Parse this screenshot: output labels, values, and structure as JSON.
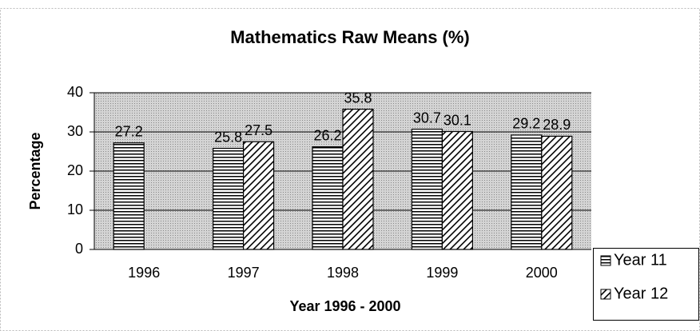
{
  "chart_data": {
    "type": "bar",
    "title": "Mathematics Raw Means (%)",
    "x_label": "Year 1996 - 2000",
    "y_label": "Percentage",
    "categories": [
      "1996",
      "1997",
      "1998",
      "1999",
      "2000"
    ],
    "series": [
      {
        "name": "Year 11",
        "color": "#000000",
        "values": [
          27.2,
          25.8,
          26.2,
          30.7,
          29.2
        ]
      },
      {
        "name": "Year 12",
        "color": "#000000",
        "values": [
          null,
          27.5,
          35.8,
          30.1,
          28.9
        ]
      }
    ],
    "ylim": [
      0,
      40
    ],
    "yticks": [
      0,
      10,
      20,
      30,
      40
    ],
    "grid": true
  }
}
